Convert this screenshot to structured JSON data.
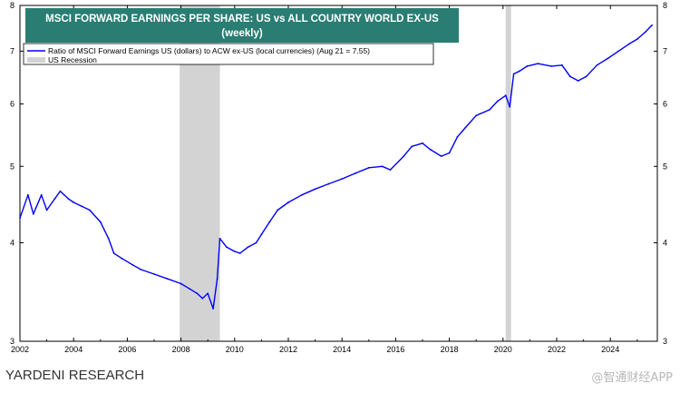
{
  "chart_data": {
    "type": "line",
    "title": "MSCI FORWARD EARNINGS PER SHARE: US vs ALL COUNTRY WORLD EX-US",
    "subtitle": "(weekly)",
    "xlabel": "",
    "ylabel": "",
    "yscale": "log",
    "xlim": [
      2002,
      2025.75
    ],
    "ylim": [
      3,
      8
    ],
    "x_ticks": [
      "2002",
      "2004",
      "2006",
      "2008",
      "2010",
      "2012",
      "2014",
      "2016",
      "2018",
      "2020",
      "2022",
      "2024"
    ],
    "y_ticks": [
      "3",
      "4",
      "5",
      "6",
      "7",
      "8"
    ],
    "legend": [
      {
        "label": "Ratio of MSCI Forward Earnings US (dollars) to ACW ex-US (local currencies) (Aug 21 = 7.55)",
        "color": "#0000ff",
        "kind": "line"
      },
      {
        "label": "US Recession",
        "color": "#d3d3d3",
        "kind": "band"
      }
    ],
    "recessions": [
      [
        2007.95,
        2009.45
      ],
      [
        2020.1,
        2020.3
      ]
    ],
    "series": [
      {
        "name": "Ratio of MSCI Forward Earnings US (dollars) to ACW ex-US (local currencies)",
        "color": "#0000ff",
        "x": [
          2002.0,
          2002.3,
          2002.5,
          2002.8,
          2003.0,
          2003.3,
          2003.5,
          2003.8,
          2004.0,
          2004.3,
          2004.6,
          2005.0,
          2005.3,
          2005.5,
          2005.8,
          2006.2,
          2006.5,
          2007.0,
          2007.5,
          2008.0,
          2008.3,
          2008.6,
          2008.8,
          2009.0,
          2009.2,
          2009.35,
          2009.45,
          2009.7,
          2010.0,
          2010.2,
          2010.5,
          2010.8,
          2011.0,
          2011.3,
          2011.6,
          2012.0,
          2012.5,
          2013.0,
          2013.5,
          2014.0,
          2014.5,
          2015.0,
          2015.5,
          2015.8,
          2016.3,
          2016.6,
          2017.0,
          2017.3,
          2017.7,
          2018.0,
          2018.3,
          2018.6,
          2019.0,
          2019.5,
          2019.8,
          2020.1,
          2020.25,
          2020.4,
          2020.6,
          2020.9,
          2021.3,
          2021.8,
          2022.2,
          2022.5,
          2022.8,
          2023.1,
          2023.5,
          2023.9,
          2024.3,
          2024.7,
          2025.0,
          2025.3,
          2025.55
        ],
        "values": [
          4.3,
          4.6,
          4.35,
          4.6,
          4.4,
          4.55,
          4.65,
          4.55,
          4.5,
          4.45,
          4.4,
          4.25,
          4.05,
          3.88,
          3.82,
          3.75,
          3.7,
          3.65,
          3.6,
          3.55,
          3.5,
          3.45,
          3.4,
          3.45,
          3.3,
          3.6,
          4.05,
          3.95,
          3.9,
          3.88,
          3.95,
          4.0,
          4.1,
          4.25,
          4.4,
          4.5,
          4.6,
          4.68,
          4.75,
          4.82,
          4.9,
          4.98,
          5.0,
          4.95,
          5.15,
          5.3,
          5.35,
          5.25,
          5.15,
          5.2,
          5.45,
          5.6,
          5.8,
          5.9,
          6.05,
          6.15,
          5.95,
          6.55,
          6.6,
          6.7,
          6.75,
          6.7,
          6.72,
          6.5,
          6.42,
          6.5,
          6.72,
          6.85,
          7.0,
          7.15,
          7.25,
          7.4,
          7.55
        ]
      }
    ]
  },
  "footer": {
    "source": "YARDENI RESEARCH",
    "watermark": "@智通财经APP"
  }
}
